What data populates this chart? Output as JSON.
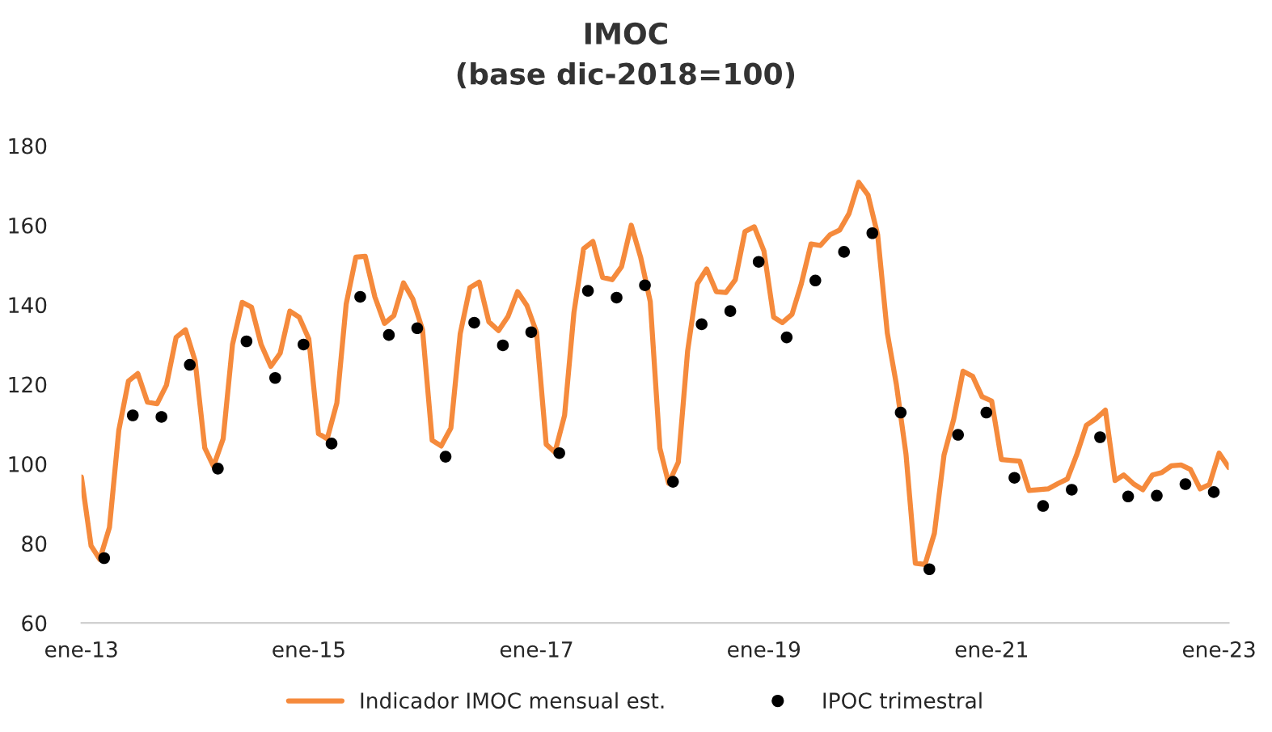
{
  "chart_data": {
    "type": "line",
    "title": "IMOC",
    "subtitle": "(base dic-2018=100)",
    "legend": "bottom",
    "grid": false,
    "ylim": [
      60,
      180
    ],
    "yticks": [
      60,
      80,
      100,
      120,
      140,
      160,
      180
    ],
    "xlim": [
      "2013-01",
      "2023-02"
    ],
    "xticks": [
      {
        "value": "2013-01",
        "label": "ene-13"
      },
      {
        "value": "2015-01",
        "label": "ene-15"
      },
      {
        "value": "2017-01",
        "label": "ene-17"
      },
      {
        "value": "2019-01",
        "label": "ene-19"
      },
      {
        "value": "2021-01",
        "label": "ene-21"
      },
      {
        "value": "2023-01",
        "label": "ene-23"
      }
    ],
    "series": [
      {
        "name": "Indicador IMOC mensual est.",
        "color": "#f58a3c",
        "marker": "none",
        "line_style": "solid",
        "x": [
          "2013-01",
          "2013-02",
          "2013-03",
          "2013-04",
          "2013-05",
          "2013-06",
          "2013-07",
          "2013-08",
          "2013-09",
          "2013-10",
          "2013-11",
          "2013-12",
          "2014-01",
          "2014-02",
          "2014-03",
          "2014-04",
          "2014-05",
          "2014-06",
          "2014-07",
          "2014-08",
          "2014-09",
          "2014-10",
          "2014-11",
          "2014-12",
          "2015-01",
          "2015-02",
          "2015-03",
          "2015-04",
          "2015-05",
          "2015-06",
          "2015-07",
          "2015-08",
          "2015-09",
          "2015-10",
          "2015-11",
          "2015-12",
          "2016-01",
          "2016-02",
          "2016-03",
          "2016-04",
          "2016-05",
          "2016-06",
          "2016-07",
          "2016-08",
          "2016-09",
          "2016-10",
          "2016-11",
          "2016-12",
          "2017-01",
          "2017-02",
          "2017-03",
          "2017-04",
          "2017-05",
          "2017-06",
          "2017-07",
          "2017-08",
          "2017-09",
          "2017-10",
          "2017-11",
          "2017-12",
          "2018-01",
          "2018-02",
          "2018-03",
          "2018-04",
          "2018-05",
          "2018-06",
          "2018-07",
          "2018-08",
          "2018-09",
          "2018-10",
          "2018-11",
          "2018-12",
          "2019-01",
          "2019-02",
          "2019-03",
          "2019-04",
          "2019-05",
          "2019-06",
          "2019-07",
          "2019-08",
          "2019-09",
          "2019-10",
          "2019-11",
          "2019-12",
          "2020-01",
          "2020-02",
          "2020-03",
          "2020-04",
          "2020-05",
          "2020-06",
          "2020-07",
          "2020-08",
          "2020-09",
          "2020-10",
          "2020-11",
          "2020-12",
          "2021-01",
          "2021-02",
          "2021-03",
          "2021-04",
          "2021-05",
          "2021-06",
          "2021-07",
          "2021-08",
          "2021-09",
          "2021-10",
          "2021-11",
          "2021-12",
          "2022-01",
          "2022-02",
          "2022-03",
          "2022-04",
          "2022-05",
          "2022-06",
          "2022-07",
          "2022-08",
          "2022-09",
          "2022-10",
          "2022-11",
          "2022-12",
          "2023-01",
          "2023-02"
        ],
        "values": [
          96.7,
          79.4,
          76,
          84,
          108.4,
          120.8,
          122.7,
          115.5,
          115.1,
          119.8,
          131.8,
          133.7,
          125.9,
          104,
          99.4,
          106.3,
          130,
          140.6,
          139.4,
          130,
          124.5,
          127.8,
          138.4,
          136.9,
          131.4,
          107.6,
          106.3,
          115.3,
          140.2,
          152,
          152.2,
          142,
          135.3,
          137.3,
          145.5,
          141.4,
          133.7,
          105.9,
          104.5,
          109,
          132.7,
          144.3,
          145.7,
          135.7,
          133.5,
          137,
          143.3,
          139.8,
          133.1,
          104.9,
          102.9,
          112.2,
          138,
          154.1,
          155.9,
          146.9,
          146.3,
          149.6,
          160,
          152,
          140.8,
          103.9,
          95.1,
          100.4,
          128.4,
          145.3,
          149,
          143.3,
          143.1,
          146.3,
          158.4,
          159.6,
          153.5,
          136.9,
          135.5,
          137.6,
          145.3,
          155.3,
          154.9,
          157.6,
          158.8,
          162.9,
          170.8,
          167.6,
          157.6,
          132.9,
          120,
          102.4,
          75,
          74.7,
          82.5,
          102.2,
          111.2,
          123.3,
          122,
          116.9,
          115.8,
          101.1,
          100.9,
          100.7,
          93.3,
          93.5,
          93.7,
          95,
          96.2,
          102.3,
          109.7,
          111.3,
          113.5,
          95.8,
          97.2,
          95,
          93.5,
          97.2,
          97.8,
          99.5,
          99.7,
          98.6,
          93.7,
          94.8,
          102.7,
          99.1
        ]
      },
      {
        "name": "IPOC trimestral",
        "type": "scatter",
        "color": "#000000",
        "marker": "circle",
        "x": [
          "2013-03-15",
          "2013-06-15",
          "2013-09-15",
          "2013-12-15",
          "2014-03-15",
          "2014-06-15",
          "2014-09-15",
          "2014-12-15",
          "2015-03-15",
          "2015-06-15",
          "2015-09-15",
          "2015-12-15",
          "2016-03-15",
          "2016-06-15",
          "2016-09-15",
          "2016-12-15",
          "2017-03-15",
          "2017-06-15",
          "2017-09-15",
          "2017-12-15",
          "2018-03-15",
          "2018-06-15",
          "2018-09-15",
          "2018-12-15",
          "2019-03-15",
          "2019-06-15",
          "2019-09-15",
          "2019-12-15",
          "2020-03-15",
          "2020-06-15",
          "2020-09-15",
          "2020-12-15",
          "2021-03-15",
          "2021-06-15",
          "2021-09-15",
          "2021-12-15",
          "2022-03-15",
          "2022-06-15",
          "2022-09-15",
          "2022-12-15"
        ],
        "values": [
          76.3,
          112.2,
          111.8,
          124.9,
          98.8,
          130.8,
          121.6,
          130,
          105.1,
          142,
          132.4,
          134.1,
          101.8,
          135.5,
          129.8,
          133.1,
          102.7,
          143.5,
          141.8,
          144.9,
          95.5,
          135.1,
          138.4,
          150.8,
          131.8,
          146.1,
          153.3,
          158,
          112.9,
          73.5,
          107.3,
          112.9,
          96.5,
          89.4,
          93.5,
          106.7,
          91.8,
          92,
          94.9,
          92.9
        ]
      }
    ]
  }
}
